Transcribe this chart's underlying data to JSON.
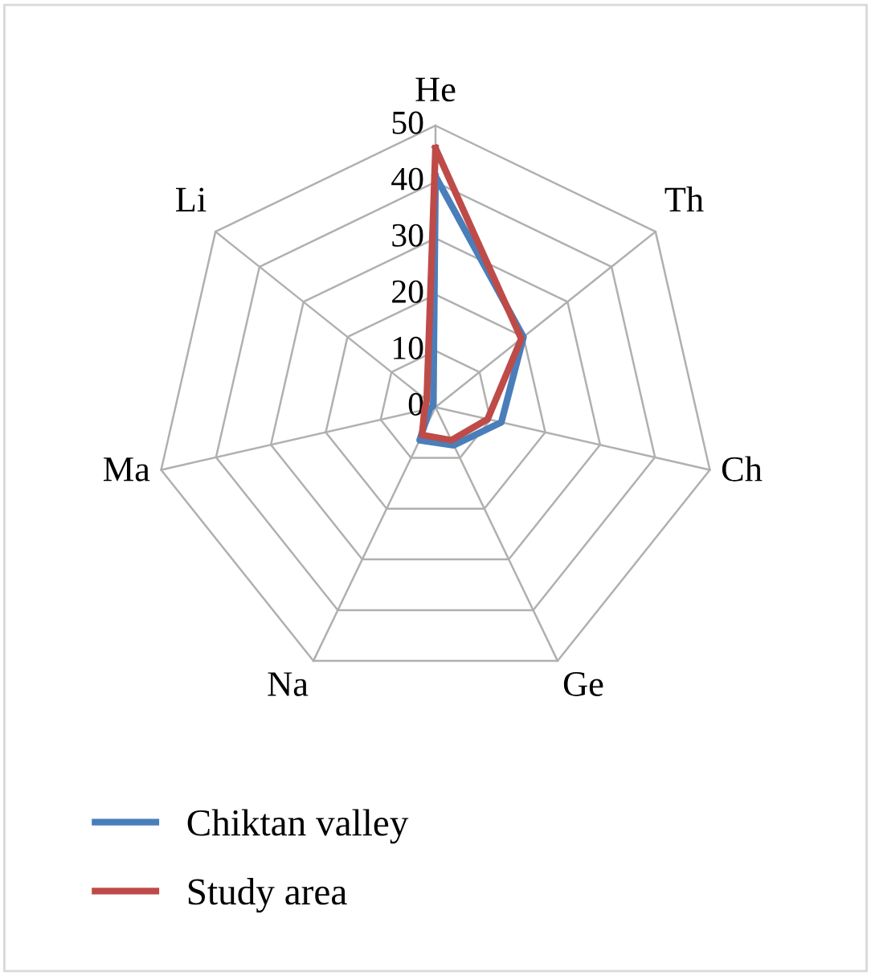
{
  "chart_data": {
    "type": "radar",
    "categories": [
      "He",
      "Th",
      "Ch",
      "Ge",
      "Na",
      "Ma",
      "Li"
    ],
    "ylim": [
      0,
      50
    ],
    "yticks": [
      0,
      10,
      20,
      30,
      40,
      50
    ],
    "grid": true,
    "legend": "bottom left",
    "series": [
      {
        "name": "Chiktan valley",
        "color": "#4a7ebb",
        "values": [
          41,
          20,
          12,
          7.5,
          6.5,
          1,
          0.5
        ]
      },
      {
        "name": "Study area",
        "color": "#be4b48",
        "values": [
          46,
          19.5,
          9.5,
          6.5,
          5.5,
          2,
          2
        ]
      }
    ]
  }
}
